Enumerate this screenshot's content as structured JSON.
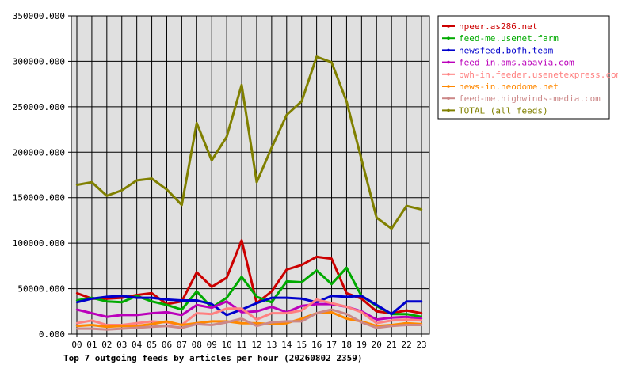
{
  "chart_data": {
    "type": "line",
    "title": "Top 7 outgoing feeds by articles per hour (20260802 2359)",
    "x": [
      "00",
      "01",
      "02",
      "03",
      "04",
      "05",
      "06",
      "07",
      "08",
      "09",
      "10",
      "11",
      "12",
      "13",
      "14",
      "15",
      "16",
      "17",
      "18",
      "19",
      "20",
      "21",
      "22",
      "23"
    ],
    "ylim": [
      0,
      350000
    ],
    "yticks": [
      "0.000",
      "50000.000",
      "100000.000",
      "150000.000",
      "200000.000",
      "250000.000",
      "300000.000",
      "350000.000"
    ],
    "grid": true,
    "legend_position": "right",
    "series": [
      {
        "name": "npeer.as286.net",
        "color": "#cc0000",
        "values": [
          45000,
          39000,
          39000,
          40000,
          43000,
          45000,
          33000,
          36000,
          68000,
          52000,
          62000,
          103000,
          34000,
          47000,
          71000,
          76000,
          85000,
          83000,
          45000,
          39000,
          25000,
          23000,
          26000,
          23000
        ]
      },
      {
        "name": "feed-me.usenet.farm",
        "color": "#00aa00",
        "values": [
          37000,
          40000,
          36000,
          35000,
          42000,
          36000,
          32000,
          27000,
          47000,
          29000,
          40000,
          63000,
          41000,
          35000,
          58000,
          57000,
          70000,
          55000,
          73000,
          42000,
          31000,
          22000,
          22000,
          19000
        ]
      },
      {
        "name": "newsfeed.bofh.team",
        "color": "#0000cc",
        "values": [
          35000,
          39000,
          41000,
          42000,
          40000,
          40000,
          38000,
          37000,
          37000,
          33000,
          21000,
          27000,
          34000,
          40000,
          40000,
          39000,
          35000,
          42000,
          41000,
          42000,
          32000,
          22000,
          36000,
          36000
        ]
      },
      {
        "name": "feed-in.ams.abavia.com",
        "color": "#bb00bb",
        "values": [
          27000,
          23000,
          19000,
          21000,
          21000,
          23000,
          24000,
          21000,
          32000,
          29000,
          36000,
          24000,
          25000,
          30000,
          24000,
          31000,
          33000,
          33000,
          30000,
          25000,
          16000,
          18000,
          19000,
          17000
        ]
      },
      {
        "name": "bwh-in.feeder.usenetexpress.com",
        "color": "#ff8080",
        "values": [
          12000,
          15000,
          10000,
          10000,
          12000,
          14000,
          13000,
          10000,
          23000,
          22000,
          28000,
          28000,
          16000,
          23000,
          23000,
          26000,
          38000,
          34000,
          30000,
          24000,
          12000,
          15000,
          16000,
          15000
        ]
      },
      {
        "name": "news-in.neodome.net",
        "color": "#ff8800",
        "values": [
          9000,
          10000,
          8000,
          9000,
          9000,
          11000,
          14000,
          10000,
          12000,
          14000,
          14000,
          12000,
          12000,
          11000,
          12000,
          17000,
          23000,
          24000,
          17000,
          14000,
          9000,
          10000,
          12000,
          11000
        ]
      },
      {
        "name": "feed-me.highwinds-media.com",
        "color": "#cc8888",
        "values": [
          6000,
          6000,
          5000,
          6000,
          7000,
          8000,
          9000,
          7000,
          11000,
          10000,
          13000,
          17000,
          9000,
          13000,
          14000,
          14000,
          23000,
          27000,
          22000,
          13000,
          7000,
          9000,
          10000,
          10000
        ]
      },
      {
        "name": "TOTAL (all feeds)",
        "color": "#808000",
        "values": [
          164000,
          167000,
          152000,
          158000,
          169000,
          171000,
          159000,
          142000,
          232000,
          191000,
          217000,
          274000,
          167000,
          205000,
          241000,
          256000,
          305000,
          299000,
          256000,
          192000,
          128000,
          116000,
          141000,
          137000
        ]
      }
    ]
  }
}
